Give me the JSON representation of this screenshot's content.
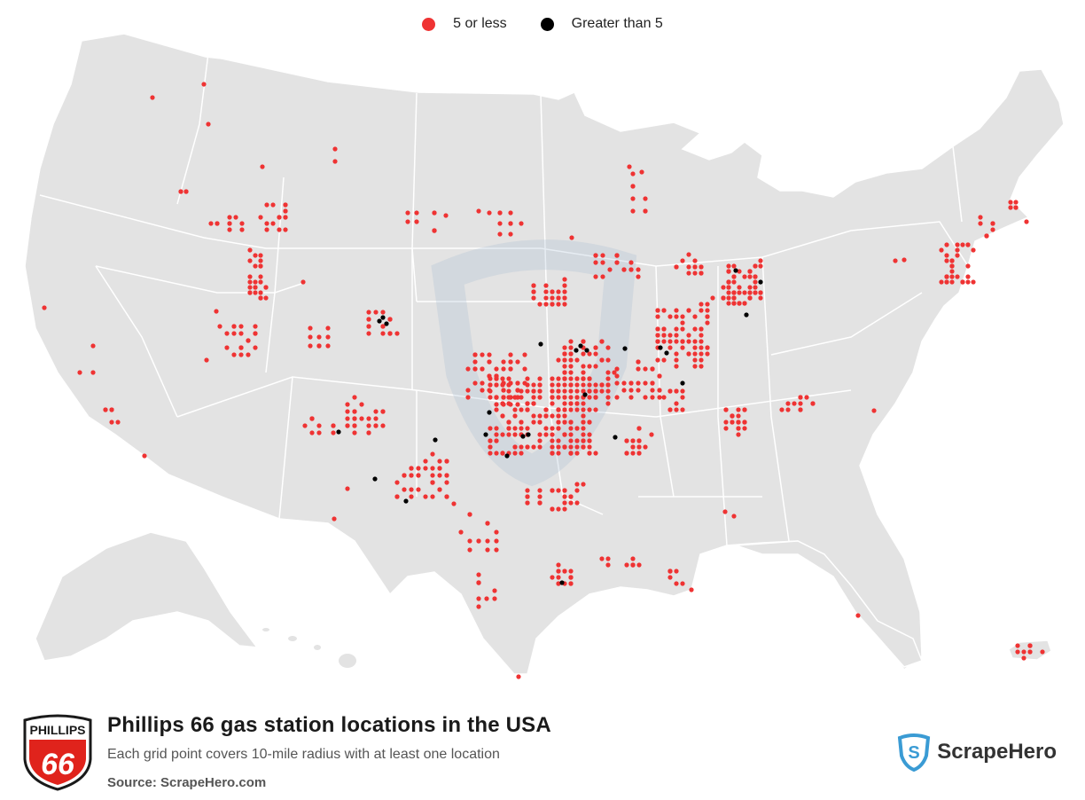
{
  "legend": {
    "items": [
      {
        "label": "5 or less",
        "color": "#ef3333"
      },
      {
        "label": "Greater than 5",
        "color": "#000000"
      }
    ]
  },
  "map": {
    "land_color": "#e3e3e3",
    "border_color": "#ffffff",
    "watermark": "ScrapeHero shield"
  },
  "footer": {
    "logo_text_top": "PHILLIPS",
    "logo_text_number": "66",
    "title": "Phillips 66 gas station locations in the USA",
    "subtitle": "Each grid point covers 10-mile radius with at least one location",
    "source": "Source: ScrapeHero.com",
    "brand": "ScrapeHero",
    "brand_color": "#3a9bd4",
    "logo_red": "#e0231c"
  }
}
